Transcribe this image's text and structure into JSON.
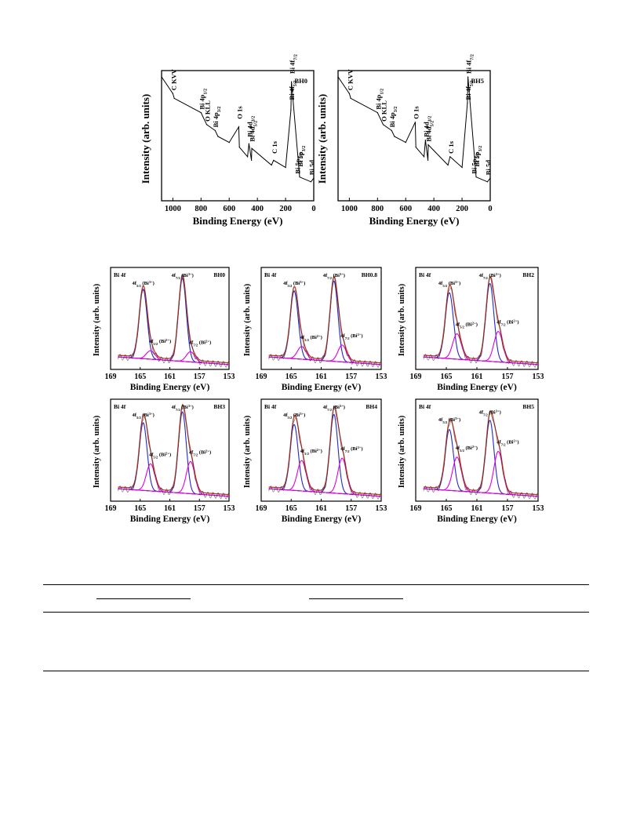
{
  "survey": {
    "xlabel": "Binding Energy (eV)",
    "ylabel": "Intensity (arb. units)",
    "xticks": [
      "1000",
      "800",
      "600",
      "400",
      "200",
      "0"
    ],
    "panels": [
      {
        "name": "BH0",
        "annotations": [
          "C KVV",
          "Bi 4p1/2",
          "O KLL",
          "Bi 4p3/2",
          "O 1s",
          "Bi 4d3/2",
          "Bi 4d5/2",
          "C 1s",
          "Bi 4f5/2",
          "Bi 4f7/2",
          "Bi 5p1/2",
          "Bi 5p3/2",
          "Bi 5d"
        ]
      },
      {
        "name": "BH5",
        "annotations": [
          "C KVV",
          "Bi 4p1/2",
          "O KLL",
          "Bi 4p3/2",
          "O 1s",
          "Bi 4d3/2",
          "Bi 4d5/2",
          "C 1s",
          "Bi 4f5/2",
          "Bi 4f7/2",
          "Bi 5p1/2",
          "Bi 5p3/2",
          "Bi 5d"
        ]
      }
    ]
  },
  "hr": {
    "region": "Bi 4f",
    "xlabel": "Binding Energy (eV)",
    "ylabel": "Intensity (arb. units)",
    "xticks": [
      "169",
      "165",
      "161",
      "157",
      "153"
    ],
    "peak_labels": {
      "a": "4f5/2 (Bi3+)",
      "b": "4f7/2 (Bi3+)",
      "c": "4f5/2 (Bi2+)",
      "d": "4f7/2 (Bi2+)"
    },
    "panels": [
      "BH0",
      "BH0.8",
      "BH2",
      "BH3",
      "BH4",
      "BH5"
    ]
  },
  "colors": {
    "raw": "#000000",
    "fit": "#c0392b",
    "bi3": "#2727c8",
    "bi2": "#e000e0",
    "bg": "#8b3a1a"
  },
  "chart_data": [
    {
      "type": "line",
      "title": "BH0",
      "xlabel": "Binding Energy (eV)",
      "ylabel": "Intensity (arb. units)",
      "xlim": [
        1080,
        0
      ],
      "xticks": [
        1000,
        800,
        600,
        400,
        200,
        0
      ],
      "x": [
        1080,
        1000,
        990,
        800,
        760,
        700,
        680,
        600,
        532,
        528,
        470,
        460,
        442,
        440,
        300,
        285,
        200,
        162,
        158,
        100,
        20,
        0
      ],
      "series": [
        {
          "values": [
            1.0,
            0.86,
            0.82,
            0.7,
            0.6,
            0.55,
            0.5,
            0.45,
            0.58,
            0.41,
            0.33,
            0.44,
            0.3,
            0.4,
            0.26,
            0.3,
            0.24,
            0.72,
            0.96,
            0.16,
            0.12,
            0.15
          ]
        }
      ]
    },
    {
      "type": "line",
      "title": "BH5",
      "xlabel": "Binding Energy (eV)",
      "ylabel": "Intensity (arb. units)",
      "xlim": [
        1080,
        0
      ],
      "xticks": [
        1000,
        800,
        600,
        400,
        200,
        0
      ],
      "x": [
        1080,
        1000,
        990,
        800,
        760,
        700,
        680,
        600,
        532,
        528,
        470,
        460,
        442,
        440,
        300,
        285,
        200,
        162,
        158,
        100,
        20,
        0
      ],
      "series": [
        {
          "values": [
            1.0,
            0.86,
            0.82,
            0.7,
            0.6,
            0.55,
            0.5,
            0.45,
            0.62,
            0.41,
            0.33,
            0.47,
            0.3,
            0.43,
            0.26,
            0.33,
            0.24,
            0.78,
            1.0,
            0.16,
            0.12,
            0.15
          ]
        }
      ]
    },
    {
      "type": "line",
      "title": "BH0",
      "xlim": [
        169,
        153
      ],
      "peaks": [
        {
          "center": 164.6,
          "height": 0.82,
          "label": "4f5/2 (Bi3+)"
        },
        {
          "center": 159.3,
          "height": 0.98,
          "label": "4f7/2 (Bi3+)"
        },
        {
          "center": 163.6,
          "height": 0.1,
          "label": "4f5/2 (Bi2+)"
        },
        {
          "center": 158.2,
          "height": 0.12,
          "label": "4f7/2 (Bi2+)"
        }
      ]
    },
    {
      "type": "line",
      "title": "BH0.8",
      "xlim": [
        169,
        153
      ],
      "peaks": [
        {
          "center": 164.6,
          "height": 0.8,
          "label": "4f5/2 (Bi3+)"
        },
        {
          "center": 159.3,
          "height": 0.95,
          "label": "4f7/2 (Bi3+)"
        },
        {
          "center": 163.6,
          "height": 0.15,
          "label": "4f5/2 (Bi2+)"
        },
        {
          "center": 158.2,
          "height": 0.2,
          "label": "4f7/2 (Bi2+)"
        }
      ]
    },
    {
      "type": "line",
      "title": "BH2",
      "xlim": [
        169,
        153
      ],
      "peaks": [
        {
          "center": 164.6,
          "height": 0.78,
          "label": "4f5/2 (Bi3+)"
        },
        {
          "center": 159.3,
          "height": 0.92,
          "label": "4f7/2 (Bi3+)"
        },
        {
          "center": 163.6,
          "height": 0.3,
          "label": "4f5/2 (Bi2+)"
        },
        {
          "center": 158.2,
          "height": 0.36,
          "label": "4f7/2 (Bi2+)"
        }
      ]
    },
    {
      "type": "line",
      "title": "BH3",
      "xlim": [
        169,
        153
      ],
      "peaks": [
        {
          "center": 164.6,
          "height": 0.8,
          "label": "4f5/2 (Bi3+)"
        },
        {
          "center": 159.3,
          "height": 0.96,
          "label": "4f7/2 (Bi3+)"
        },
        {
          "center": 163.6,
          "height": 0.32,
          "label": "4f5/2 (Bi2+)"
        },
        {
          "center": 158.2,
          "height": 0.38,
          "label": "4f7/2 (Bi2+)"
        }
      ]
    },
    {
      "type": "line",
      "title": "BH4",
      "xlim": [
        169,
        153
      ],
      "peaks": [
        {
          "center": 164.6,
          "height": 0.78,
          "label": "4f5/2 (Bi3+)"
        },
        {
          "center": 159.3,
          "height": 0.93,
          "label": "4f7/2 (Bi3+)"
        },
        {
          "center": 163.6,
          "height": 0.36,
          "label": "4f5/2 (Bi2+)"
        },
        {
          "center": 158.2,
          "height": 0.42,
          "label": "4f7/2 (Bi2+)"
        }
      ]
    },
    {
      "type": "line",
      "title": "BH5",
      "xlim": [
        169,
        153
      ],
      "peaks": [
        {
          "center": 164.6,
          "height": 0.72,
          "label": "4f5/2 (Bi3+)"
        },
        {
          "center": 159.3,
          "height": 0.86,
          "label": "4f7/2 (Bi3+)"
        },
        {
          "center": 163.6,
          "height": 0.4,
          "label": "4f5/2 (Bi2+)"
        },
        {
          "center": 158.2,
          "height": 0.5,
          "label": "4f7/2 (Bi2+)"
        }
      ]
    }
  ]
}
